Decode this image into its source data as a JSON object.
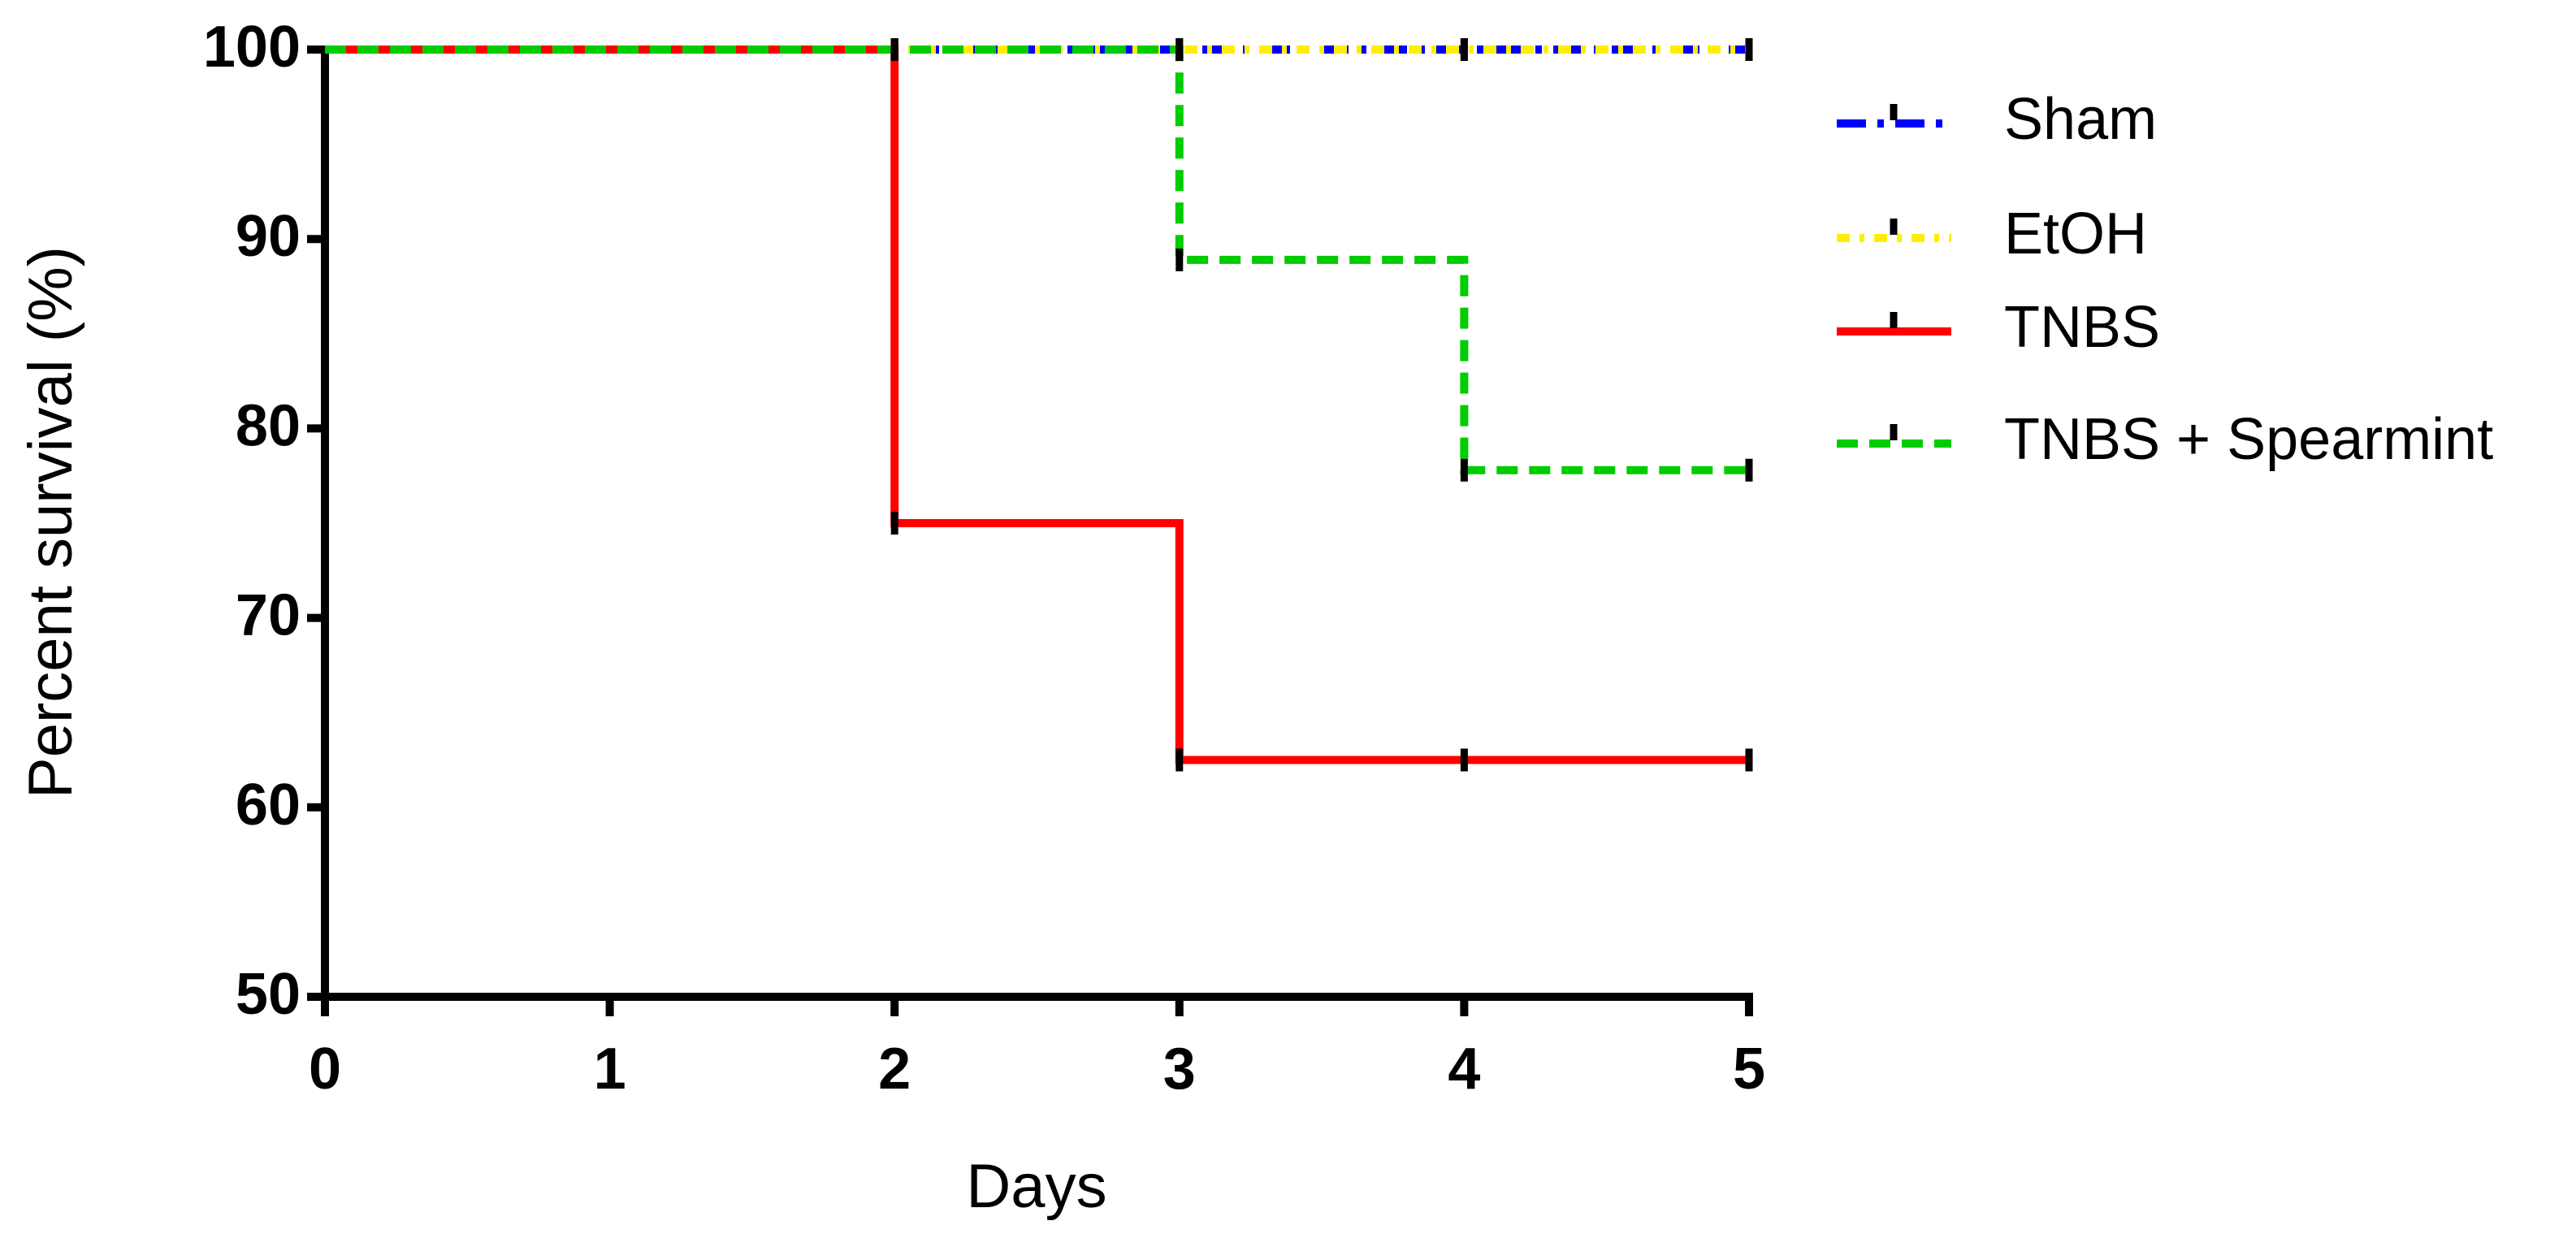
{
  "chart_data": {
    "type": "step",
    "x_label": "Days",
    "y_label": "Percent survival (%)",
    "x": [
      0,
      2,
      3,
      4,
      5
    ],
    "series": [
      {
        "name": "Sham",
        "color": "#0000ff",
        "dash": "36 14 8 14",
        "values": [
          100,
          100,
          100,
          100,
          100
        ]
      },
      {
        "name": "EtOH",
        "color": "#ffee00",
        "dash": "16 12 6 12",
        "values": [
          100,
          100,
          100,
          100,
          100
        ]
      },
      {
        "name": "TNBS",
        "color": "#ff0000",
        "dash": "none",
        "values": [
          100,
          75,
          62.5,
          62.5,
          62.5
        ]
      },
      {
        "name": "TNBS + Spearmint",
        "color": "#00cc00",
        "dash": "26 14",
        "values": [
          100,
          100,
          88.9,
          77.8,
          77.8
        ]
      }
    ],
    "xlim": [
      0,
      5
    ],
    "ylim": [
      50,
      100
    ],
    "xticks": [
      0,
      1,
      2,
      3,
      4,
      5
    ],
    "yticks": [
      50,
      60,
      70,
      80,
      90,
      100
    ],
    "legend": "right"
  }
}
